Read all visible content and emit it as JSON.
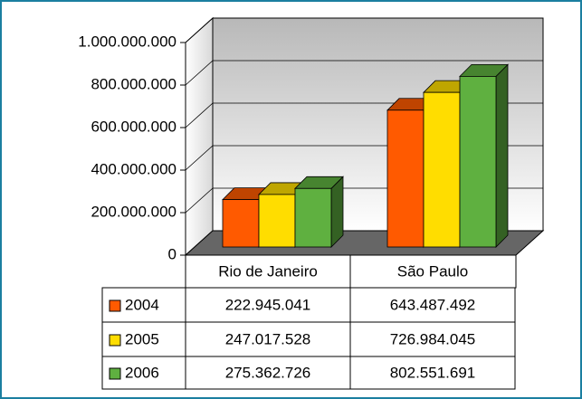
{
  "chart_data": {
    "type": "bar3d",
    "categories": [
      "Rio de Janeiro",
      "São Paulo"
    ],
    "series": [
      {
        "name": "2004",
        "color": "#ff5a00",
        "values": [
          222945041,
          643487492
        ],
        "value_labels": [
          "222.945.041",
          "643.487.492"
        ]
      },
      {
        "name": "2005",
        "color": "#ffdd00",
        "values": [
          247017528,
          726984045
        ],
        "value_labels": [
          "247.017.528",
          "726.984.045"
        ]
      },
      {
        "name": "2006",
        "color": "#5fb040",
        "values": [
          275362726,
          802551691
        ],
        "value_labels": [
          "275.362.726",
          "802.551.691"
        ]
      }
    ],
    "ylim": [
      0,
      1000000000
    ],
    "yticks": [
      0,
      {
        "value": 200000000,
        "label": "200.000.000"
      },
      {
        "value": 400000000,
        "label": "400.000.000"
      },
      {
        "value": 600000000,
        "label": "600.000.000"
      },
      {
        "value": 800000000,
        "label": "800.000.000"
      },
      {
        "value": 1000000000,
        "label": "1.000.000.000"
      }
    ],
    "grid": true
  }
}
